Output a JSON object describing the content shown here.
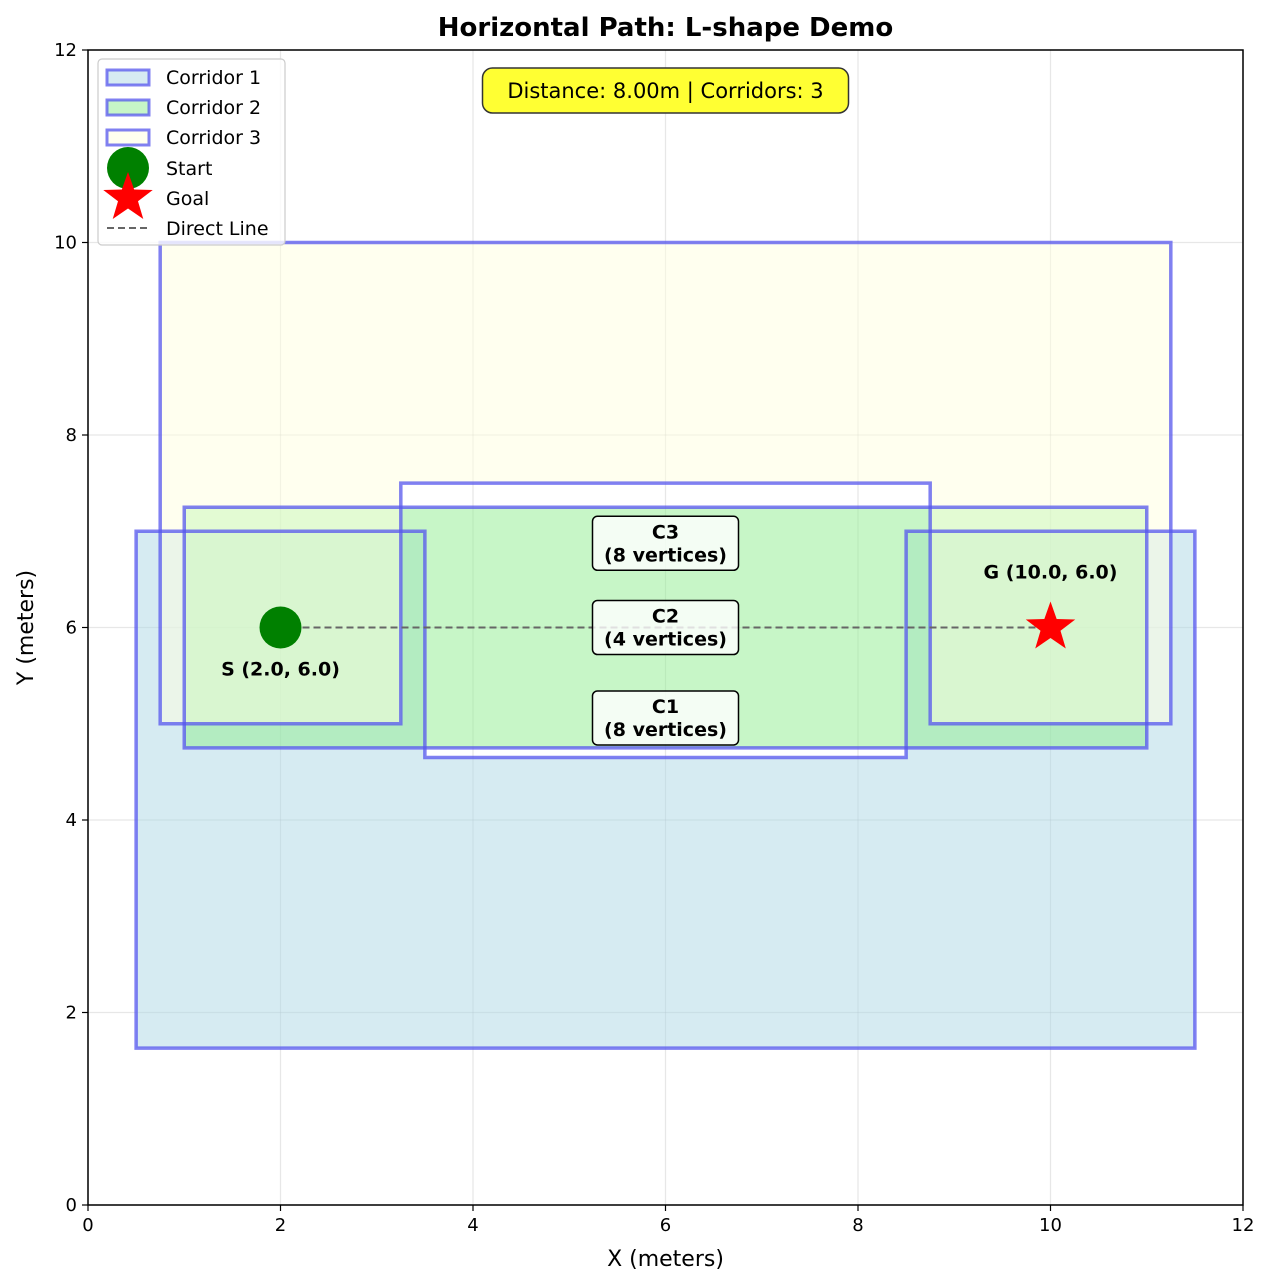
{
  "chart_data": {
    "type": "scatter",
    "title": "Horizontal Path: L-shape Demo",
    "xlabel": "X (meters)",
    "ylabel": "Y (meters)",
    "xlim": [
      0,
      12
    ],
    "ylim": [
      0,
      12
    ],
    "xticks": [
      0,
      2,
      4,
      6,
      8,
      10,
      12
    ],
    "yticks": [
      0,
      2,
      4,
      6,
      8,
      10,
      12
    ],
    "grid": true,
    "legend_position": "top-left",
    "outline_color": "#5555ee",
    "corridors": [
      {
        "name": "Corridor 1",
        "fill": "#add8e6",
        "polygon": [
          [
            0.5,
            1.63
          ],
          [
            11.5,
            1.63
          ],
          [
            11.5,
            7.0
          ],
          [
            8.5,
            7.0
          ],
          [
            8.5,
            4.65
          ],
          [
            3.5,
            4.65
          ],
          [
            3.5,
            7.0
          ],
          [
            0.5,
            7.0
          ]
        ]
      },
      {
        "name": "Corridor 2",
        "fill": "#90ee90",
        "polygon": [
          [
            1.0,
            4.75
          ],
          [
            11.0,
            4.75
          ],
          [
            11.0,
            7.25
          ],
          [
            1.0,
            7.25
          ]
        ]
      },
      {
        "name": "Corridor 3",
        "fill": "#ffffe0",
        "polygon": [
          [
            0.75,
            5.0
          ],
          [
            3.25,
            5.0
          ],
          [
            3.25,
            7.5
          ],
          [
            8.75,
            7.5
          ],
          [
            8.75,
            5.0
          ],
          [
            11.25,
            5.0
          ],
          [
            11.25,
            10.0
          ],
          [
            0.75,
            10.0
          ]
        ]
      }
    ],
    "start": {
      "x": 2.0,
      "y": 6.0,
      "label": "S (2.0, 6.0)",
      "legend": "Start",
      "color": "#008000"
    },
    "goal": {
      "x": 10.0,
      "y": 6.0,
      "label": "G (10.0, 6.0)",
      "legend": "Goal",
      "color": "#ff0000"
    },
    "direct_line": {
      "legend": "Direct Line",
      "color": "#666666"
    },
    "corridor_labels": [
      {
        "x": 6.0,
        "y": 6.875,
        "line1": "C3",
        "line2": "(8 vertices)"
      },
      {
        "x": 6.0,
        "y": 6.0,
        "line1": "C2",
        "line2": "(4 vertices)"
      },
      {
        "x": 6.0,
        "y": 5.06,
        "line1": "C1",
        "line2": "(8 vertices)"
      }
    ],
    "info_box": {
      "text": "Distance: 8.00m | Corridors: 3",
      "fill": "#ffff33"
    }
  }
}
